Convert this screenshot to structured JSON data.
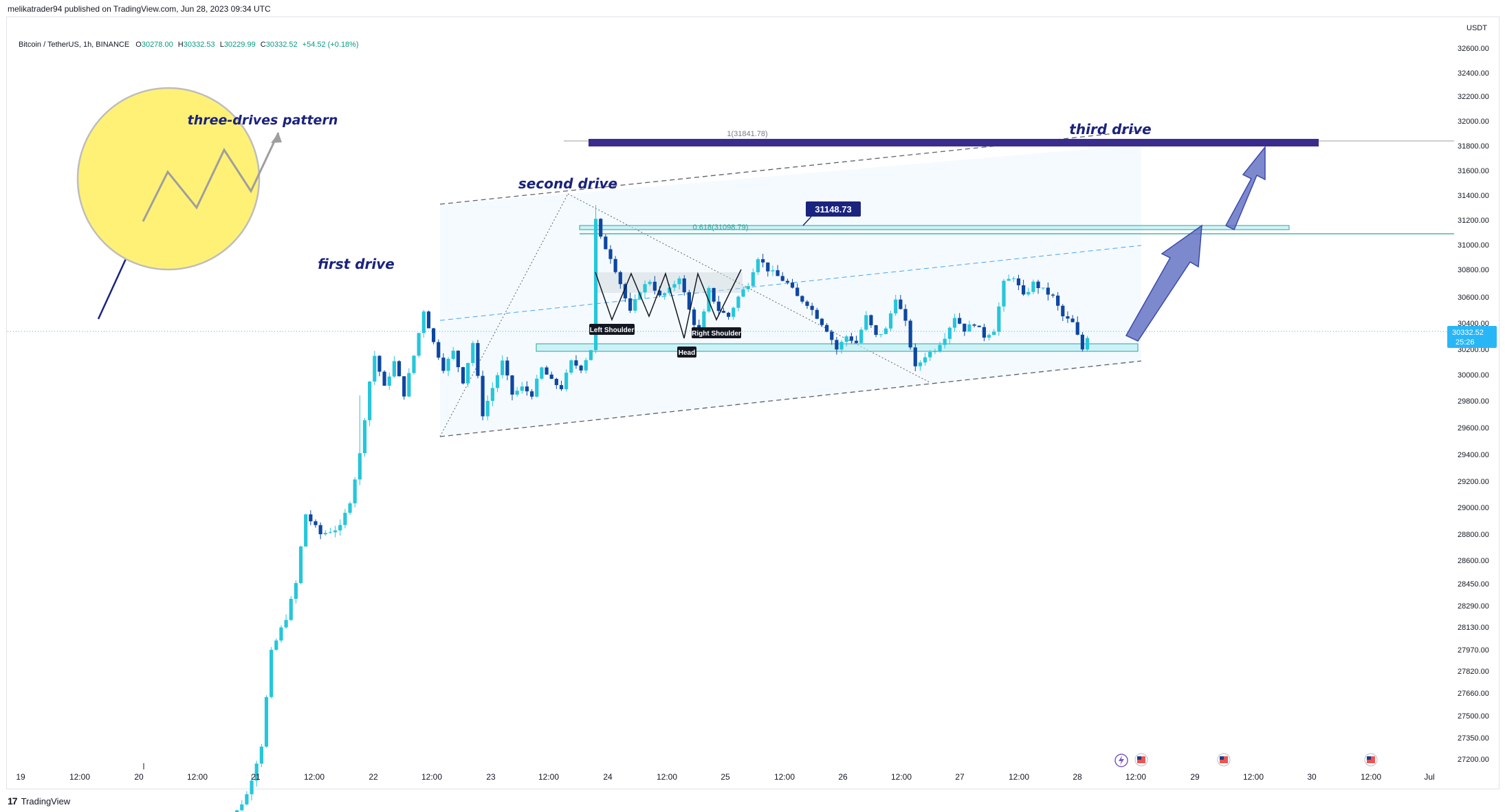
{
  "header": {
    "publisher": "melikatrader94 published on TradingView.com, Jun 28, 2023 09:34 UTC",
    "symbol": "Bitcoin / TetherUS, 1h, BINANCE",
    "ohlc": {
      "o_label": "O",
      "o": "30278.00",
      "h_label": "H",
      "h": "30332.53",
      "l_label": "L",
      "l": "30229.99",
      "c_label": "C",
      "c": "30332.52",
      "change": "+54.52 (+0.18%)"
    }
  },
  "footer": {
    "brand": "TradingView",
    "logo": "17"
  },
  "colors": {
    "bull": "#26c6da",
    "bear": "#0d47a1",
    "pattern_line": "#131722",
    "fib_line": "#26a69a",
    "target_bar": "#3a2c8c",
    "arrow": "#5c6bc0",
    "circle": "#fff176",
    "price_tag": "#29b6f6"
  },
  "chart_data": {
    "type": "candlestick",
    "symbol": "Bitcoin / TetherUS",
    "timeframe": "1h",
    "exchange": "BINANCE",
    "y_axis": {
      "unit": "USDT",
      "ticks": [
        32600,
        32400,
        32200,
        32000,
        31800,
        31600,
        31400,
        31200,
        31000,
        30800,
        30600,
        30400,
        30200,
        30000,
        29800,
        29600,
        29400,
        29200,
        29000,
        28800,
        28600,
        28450,
        28290,
        28130,
        27970,
        27820,
        27660,
        27500,
        27350,
        27200
      ],
      "tick_labels": [
        "32600.00",
        "32400.00",
        "32200.00",
        "32000.00",
        "31800.00",
        "31600.00",
        "31400.00",
        "31200.00",
        "31000.00",
        "30800.00",
        "30600.00",
        "30400.00",
        "30200.00",
        "30000.00",
        "29800.00",
        "29600.00",
        "29400.00",
        "29200.00",
        "29000.00",
        "28800.00",
        "28600.00",
        "28450.00",
        "28290.00",
        "28130.00",
        "27970.00",
        "27820.00",
        "27660.00",
        "27500.00",
        "27350.00",
        "27200.00"
      ]
    },
    "x_axis": {
      "tick_labels": [
        "19",
        "12:00",
        "20",
        "12:00",
        "21",
        "12:00",
        "22",
        "12:00",
        "23",
        "12:00",
        "24",
        "12:00",
        "25",
        "12:00",
        "26",
        "12:00",
        "27",
        "12:00",
        "28",
        "12:00",
        "29",
        "12:00",
        "30",
        "12:00",
        "Jul"
      ]
    },
    "last_price": "30332.52",
    "countdown": "25:26",
    "anchor_prices": [
      {
        "t": 0,
        "p": 26600
      },
      {
        "t": 6,
        "p": 26950
      },
      {
        "t": 9,
        "p": 27300
      },
      {
        "t": 11,
        "p": 27950
      },
      {
        "t": 14,
        "p": 28200
      },
      {
        "t": 16,
        "p": 28450
      },
      {
        "t": 18,
        "p": 28950
      },
      {
        "t": 21,
        "p": 28800
      },
      {
        "t": 25,
        "p": 28850
      },
      {
        "t": 27,
        "p": 29050
      },
      {
        "t": 29,
        "p": 29400
      },
      {
        "t": 31,
        "p": 29950
      },
      {
        "t": 32,
        "p": 30150
      },
      {
        "t": 34,
        "p": 29900
      },
      {
        "t": 36,
        "p": 30100
      },
      {
        "t": 38,
        "p": 29850
      },
      {
        "t": 40,
        "p": 30150
      },
      {
        "t": 42,
        "p": 30500
      },
      {
        "t": 44,
        "p": 30250
      },
      {
        "t": 46,
        "p": 30050
      },
      {
        "t": 48,
        "p": 30180
      },
      {
        "t": 50,
        "p": 29950
      },
      {
        "t": 52,
        "p": 30250
      },
      {
        "t": 54,
        "p": 29700
      },
      {
        "t": 56,
        "p": 29900
      },
      {
        "t": 58,
        "p": 30100
      },
      {
        "t": 60,
        "p": 29850
      },
      {
        "t": 62,
        "p": 29900
      },
      {
        "t": 64,
        "p": 29850
      },
      {
        "t": 66,
        "p": 30050
      },
      {
        "t": 68,
        "p": 29950
      },
      {
        "t": 70,
        "p": 29900
      },
      {
        "t": 72,
        "p": 30100
      },
      {
        "t": 74,
        "p": 30050
      },
      {
        "t": 76,
        "p": 30200
      },
      {
        "t": 77,
        "p": 31200
      },
      {
        "t": 78,
        "p": 31050
      },
      {
        "t": 80,
        "p": 30900
      },
      {
        "t": 82,
        "p": 30700
      },
      {
        "t": 84,
        "p": 30480
      },
      {
        "t": 86,
        "p": 30650
      },
      {
        "t": 88,
        "p": 30720
      },
      {
        "t": 90,
        "p": 30600
      },
      {
        "t": 92,
        "p": 30650
      },
      {
        "t": 94,
        "p": 30750
      },
      {
        "t": 96,
        "p": 30500
      },
      {
        "t": 98,
        "p": 30300
      },
      {
        "t": 100,
        "p": 30650
      },
      {
        "t": 102,
        "p": 30500
      },
      {
        "t": 104,
        "p": 30450
      },
      {
        "t": 106,
        "p": 30600
      },
      {
        "t": 108,
        "p": 30700
      },
      {
        "t": 110,
        "p": 30900
      },
      {
        "t": 112,
        "p": 30800
      },
      {
        "t": 114,
        "p": 30750
      },
      {
        "t": 116,
        "p": 30700
      },
      {
        "t": 118,
        "p": 30600
      },
      {
        "t": 120,
        "p": 30550
      },
      {
        "t": 122,
        "p": 30450
      },
      {
        "t": 124,
        "p": 30350
      },
      {
        "t": 126,
        "p": 30200
      },
      {
        "t": 128,
        "p": 30300
      },
      {
        "t": 130,
        "p": 30250
      },
      {
        "t": 132,
        "p": 30450
      },
      {
        "t": 134,
        "p": 30300
      },
      {
        "t": 136,
        "p": 30350
      },
      {
        "t": 138,
        "p": 30600
      },
      {
        "t": 140,
        "p": 30400
      },
      {
        "t": 142,
        "p": 30050
      },
      {
        "t": 144,
        "p": 30150
      },
      {
        "t": 146,
        "p": 30200
      },
      {
        "t": 148,
        "p": 30300
      },
      {
        "t": 150,
        "p": 30450
      },
      {
        "t": 152,
        "p": 30350
      },
      {
        "t": 154,
        "p": 30400
      },
      {
        "t": 156,
        "p": 30300
      },
      {
        "t": 158,
        "p": 30350
      },
      {
        "t": 160,
        "p": 30700
      },
      {
        "t": 162,
        "p": 30750
      },
      {
        "t": 164,
        "p": 30600
      },
      {
        "t": 166,
        "p": 30700
      },
      {
        "t": 168,
        "p": 30650
      },
      {
        "t": 170,
        "p": 30600
      },
      {
        "t": 172,
        "p": 30450
      },
      {
        "t": 174,
        "p": 30400
      },
      {
        "t": 176,
        "p": 30200
      },
      {
        "t": 177,
        "p": 30300
      }
    ],
    "annotations": {
      "three_drives_label": "three-drives pattern",
      "first_drive": "first drive",
      "second_drive": "second drive",
      "third_drive": "third drive",
      "left_shoulder": "Left Shoulder",
      "head": "Head",
      "right_shoulder": "Right Shoulder",
      "price_callout": "31148.73",
      "fib_1_label": "1(31841.78)",
      "fib_0618_label": "0.618(31098.79)"
    }
  }
}
